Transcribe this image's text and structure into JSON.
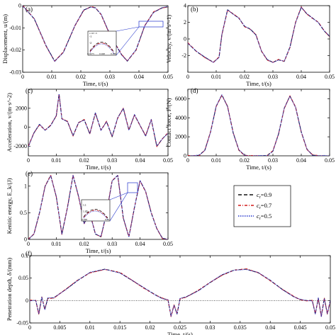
{
  "colors": {
    "s09": "#111111",
    "s07": "#d41a1a",
    "s05": "#2233cc",
    "zero": "#000000"
  },
  "legend": {
    "entries": [
      {
        "label": "c",
        "sub": "r",
        "suffix": "=0.9",
        "color": "#111111",
        "dash": "5,3"
      },
      {
        "label": "c",
        "sub": "r",
        "suffix": "=0.7",
        "color": "#d41a1a",
        "dash": "4,2,1,2"
      },
      {
        "label": "c",
        "sub": "r",
        "suffix": "=0.5",
        "color": "#2233cc",
        "dash": "1.5,1.5"
      }
    ]
  },
  "chart_data": [
    {
      "panel": "(a)",
      "type": "line",
      "xlabel": "Time, t/(s)",
      "ylabel": "Displacement, u/(m)",
      "xlim": [
        0,
        0.05
      ],
      "ylim": [
        -0.03,
        0
      ],
      "xticks": [
        "0",
        "0.01",
        "0.02",
        "0.03",
        "0.04",
        "0.05"
      ],
      "yticks": [
        "-0.03",
        "-0.02",
        "-0.01",
        "0"
      ],
      "x": [
        0,
        0.004,
        0.008,
        0.011,
        0.014,
        0.018,
        0.021,
        0.0235,
        0.025,
        0.027,
        0.03,
        0.034,
        0.036,
        0.039,
        0.042,
        0.045,
        0.048,
        0.05
      ],
      "values": [
        0,
        -0.006,
        -0.018,
        -0.025,
        -0.021,
        -0.009,
        -0.002,
        -0.0005,
        -0.001,
        -0.004,
        -0.013,
        -0.022,
        -0.025,
        -0.02,
        -0.009,
        -0.003,
        -0.001,
        -0.0005
      ],
      "inset": {
        "xtick_labels": [
          "0.0475",
          "0.048",
          "0.049"
        ],
        "ytick_labels": [
          "-1",
          "-2"
        ],
        "ytick_exponent": "x 10^-3"
      }
    },
    {
      "panel": "(b)",
      "type": "line",
      "xlabel": "Time, t/(s)",
      "ylabel": "Velocity, v/(m·s^-1)",
      "xlim": [
        0,
        0.05
      ],
      "ylim": [
        -4,
        4
      ],
      "xticks": [
        "0",
        "0.01",
        "0.02",
        "0.03",
        "0.04",
        "0.05"
      ],
      "yticks": [
        "-2",
        "0",
        "2",
        "4"
      ],
      "x": [
        0,
        0.003,
        0.006,
        0.009,
        0.011,
        0.012,
        0.014,
        0.016,
        0.018,
        0.02,
        0.022,
        0.024,
        0.026,
        0.028,
        0.03,
        0.032,
        0.034,
        0.036,
        0.038,
        0.04,
        0.042,
        0.044,
        0.046,
        0.048,
        0.05
      ],
      "values": [
        -0.5,
        -1.5,
        -2.2,
        -2.8,
        -2.2,
        0.5,
        3.5,
        3.0,
        2.5,
        1.5,
        1.2,
        0.5,
        -1.5,
        -2.5,
        -2.8,
        -2.5,
        -2.7,
        -1.0,
        2.0,
        3.8,
        3.0,
        2.5,
        2.0,
        1.0,
        0.3
      ]
    },
    {
      "panel": "(c)",
      "type": "line",
      "xlabel": "Time, t/(s)",
      "ylabel": "Acceleration, v/(m·s^-2)",
      "xlim": [
        0,
        0.05
      ],
      "ylim": [
        -3000,
        4000
      ],
      "xticks": [
        "0",
        "0.01",
        "0.02",
        "0.03",
        "0.04",
        "0.05"
      ],
      "yticks": [
        "-2000",
        "0",
        "2000"
      ],
      "x": [
        0,
        0.002,
        0.004,
        0.006,
        0.008,
        0.01,
        0.011,
        0.012,
        0.014,
        0.016,
        0.018,
        0.02,
        0.022,
        0.024,
        0.026,
        0.028,
        0.03,
        0.032,
        0.034,
        0.036,
        0.038,
        0.04,
        0.042,
        0.044,
        0.046,
        0.048,
        0.05
      ],
      "values": [
        -2000,
        -600,
        300,
        -300,
        200,
        1200,
        3500,
        900,
        600,
        -900,
        500,
        800,
        -700,
        1500,
        -300,
        600,
        -1000,
        1000,
        2000,
        -300,
        1300,
        200,
        -900,
        800,
        -2000,
        -1200,
        -600
      ]
    },
    {
      "panel": "(d)",
      "type": "line",
      "xlabel": "Time, t/(s)",
      "ylabel": "Contact force, F/(N)",
      "xlim": [
        0,
        0.05
      ],
      "ylim": [
        0,
        7000
      ],
      "xticks": [
        "0",
        "0.01",
        "0.02",
        "0.03",
        "0.04",
        "0.05"
      ],
      "yticks": [
        "0",
        "2000",
        "4000",
        "6000"
      ],
      "x": [
        0,
        0.002,
        0.004,
        0.006,
        0.008,
        0.01,
        0.012,
        0.014,
        0.016,
        0.018,
        0.02,
        0.022,
        0.024,
        0.026,
        0.028,
        0.03,
        0.032,
        0.034,
        0.036,
        0.038,
        0.04,
        0.042,
        0.044,
        0.046,
        0.048,
        0.05
      ],
      "values": [
        0,
        0,
        50,
        600,
        2500,
        5200,
        6400,
        5200,
        2400,
        600,
        60,
        0,
        0,
        0,
        40,
        500,
        2300,
        5000,
        6300,
        5100,
        2500,
        700,
        80,
        0,
        0,
        0
      ]
    },
    {
      "panel": "(e)",
      "type": "line",
      "xlabel": "Time, t/(s)",
      "ylabel": "Kenitic energy, E_k/(J)",
      "xlim": [
        0,
        0.05
      ],
      "ylim": [
        0,
        1.25
      ],
      "xticks": [
        "0",
        "0.01",
        "0.02",
        "0.03",
        "0.04",
        "0.05"
      ],
      "yticks": [
        "0",
        "0.5",
        "1"
      ],
      "x": [
        0,
        0.002,
        0.004,
        0.006,
        0.008,
        0.01,
        0.012,
        0.014,
        0.016,
        0.018,
        0.02,
        0.022,
        0.024,
        0.026,
        0.028,
        0.03,
        0.032,
        0.034,
        0.036,
        0.038,
        0.04,
        0.042,
        0.044,
        0.046,
        0.048,
        0.05
      ],
      "values": [
        0,
        0.1,
        0.5,
        1.0,
        1.2,
        0.8,
        0.1,
        0.6,
        1.2,
        0.8,
        0.3,
        0.5,
        0.1,
        0.05,
        0.5,
        1.1,
        1.2,
        0.4,
        0.05,
        0.6,
        1.1,
        0.9,
        0.5,
        0.2,
        0.02,
        0
      ],
      "inset": {
        "xtick_labels": [
          "0.038",
          "0.04"
        ],
        "ytick_labels": [
          "1.1",
          "1.05"
        ]
      }
    },
    {
      "panel": "(f)",
      "type": "line",
      "xlabel": "Time, t/(s)",
      "ylabel": "Penetration depth, δ/(mm)",
      "xlim": [
        0,
        0.05
      ],
      "ylim": [
        -0.05,
        0.1
      ],
      "xticks": [
        "0",
        "0.005",
        "0.01",
        "0.015",
        "0.02",
        "0.025",
        "0.03",
        "0.035",
        "0.04",
        "0.045",
        "0.05"
      ],
      "yticks": [
        "-0.05",
        "0",
        "0.05",
        "0.1"
      ],
      "x": [
        0,
        0.001,
        0.0015,
        0.002,
        0.0025,
        0.003,
        0.004,
        0.006,
        0.008,
        0.01,
        0.0125,
        0.015,
        0.017,
        0.019,
        0.021,
        0.022,
        0.023,
        0.0235,
        0.024,
        0.0245,
        0.025,
        0.026,
        0.028,
        0.03,
        0.032,
        0.034,
        0.036,
        0.038,
        0.04,
        0.042,
        0.044,
        0.045,
        0.046,
        0.047,
        0.0475,
        0.048,
        0.0485,
        0.049,
        0.0495,
        0.05
      ],
      "values": [
        0,
        0,
        -0.03,
        0.008,
        -0.02,
        0.005,
        0.006,
        0.025,
        0.045,
        0.062,
        0.07,
        0.062,
        0.045,
        0.028,
        0.012,
        0.005,
        0.001,
        -0.035,
        -0.01,
        -0.03,
        0.004,
        0.008,
        0.022,
        0.04,
        0.057,
        0.068,
        0.07,
        0.062,
        0.045,
        0.025,
        0.008,
        0.002,
        0.0,
        0.0,
        -0.03,
        0.005,
        -0.035,
        0.005,
        -0.03,
        0.0
      ]
    }
  ]
}
